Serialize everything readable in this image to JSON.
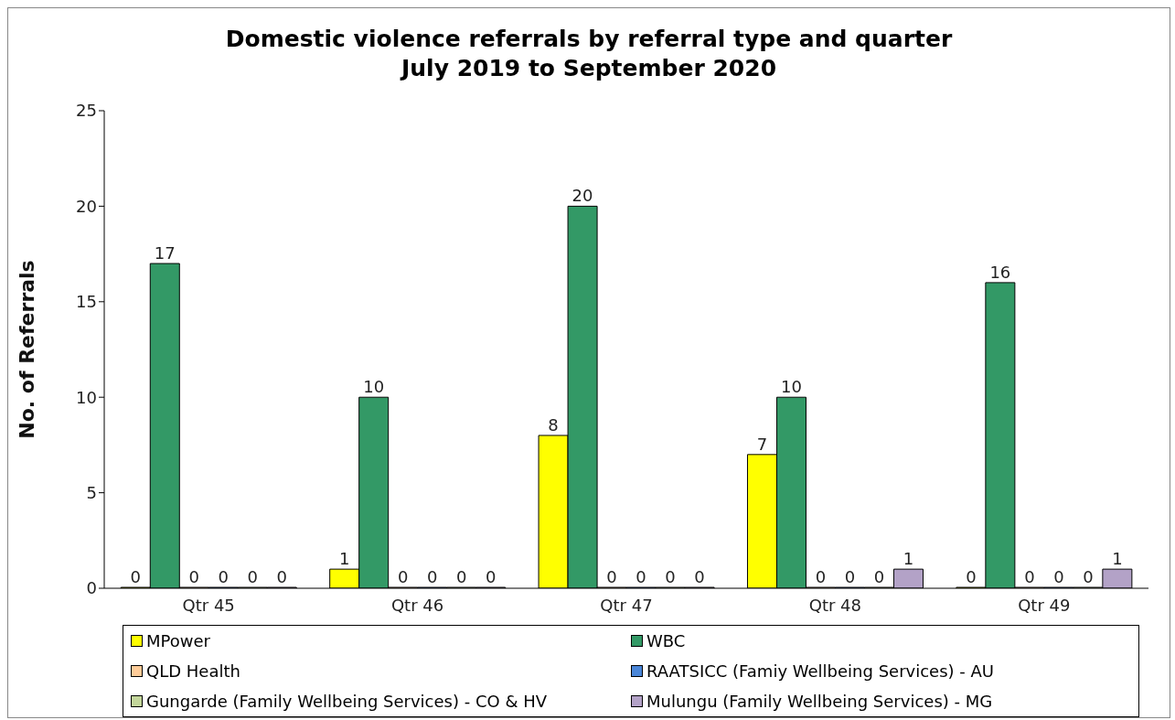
{
  "chart_data": {
    "type": "bar",
    "title": "Domestic violence referrals by referral type and quarter",
    "subtitle": "July 2019 to September 2020",
    "ylabel": "No. of Referrals",
    "categories": [
      "Qtr 45",
      "Qtr 46",
      "Qtr 47",
      "Qtr 48",
      "Qtr 49"
    ],
    "series": [
      {
        "name": "MPower",
        "color": "#ffff00",
        "values": [
          0,
          1,
          8,
          7,
          0
        ]
      },
      {
        "name": "WBC",
        "color": "#339966",
        "values": [
          17,
          10,
          20,
          10,
          16
        ]
      },
      {
        "name": "QLD Health",
        "color": "#ffcc99",
        "values": [
          0,
          0,
          0,
          0,
          0
        ]
      },
      {
        "name": "RAATSICC (Famiy Wellbeing Services) - AU",
        "color": "#4a86d8",
        "values": [
          0,
          0,
          0,
          0,
          0
        ]
      },
      {
        "name": "Gungarde (Family Wellbeing Services) - CO & HV",
        "color": "#c3d69b",
        "values": [
          0,
          0,
          0,
          0,
          0
        ]
      },
      {
        "name": "Mulungu (Family Wellbeing Services) - MG",
        "color": "#b3a2c7",
        "values": [
          0,
          0,
          0,
          1,
          1
        ]
      }
    ],
    "ylim": [
      0,
      25
    ],
    "yticks": [
      0,
      5,
      10,
      15,
      20,
      25
    ],
    "grid": false,
    "legend": "bottom",
    "data_labels": true
  }
}
